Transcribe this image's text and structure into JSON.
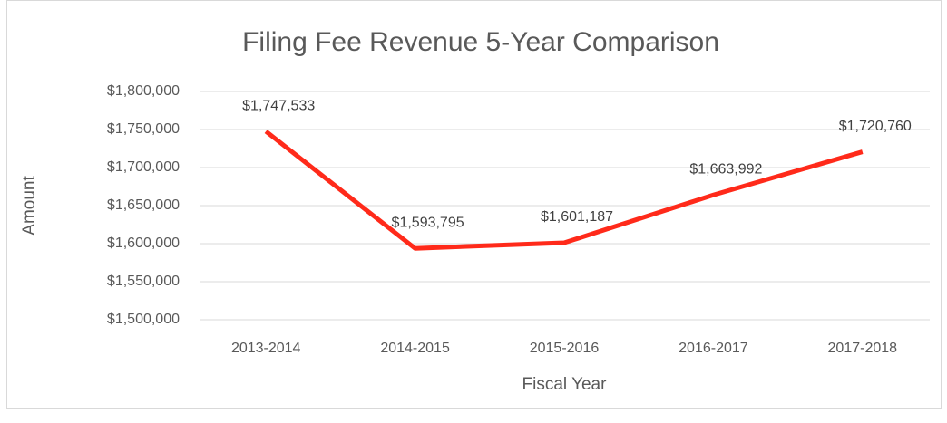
{
  "chart_data": {
    "type": "line",
    "title": "Filing Fee Revenue 5-Year Comparison",
    "x_label": "Fiscal Year",
    "y_label": "Amount",
    "categories": [
      "2013-2014",
      "2014-2015",
      "2015-2016",
      "2016-2017",
      "2017-2018"
    ],
    "series": [
      {
        "name": "Amount",
        "color": "#ff2a1a",
        "values": [
          1747533,
          1593795,
          1601187,
          1663992,
          1720760
        ],
        "value_labels": [
          "$1,747,533",
          "$1,593,795",
          "$1,601,187",
          "$1,663,992",
          "$1,720,760"
        ]
      }
    ],
    "ylim": [
      1500000,
      1800000
    ],
    "yticks": [
      {
        "value": 1500000,
        "label": "$1,500,000"
      },
      {
        "value": 1550000,
        "label": "$1,550,000"
      },
      {
        "value": 1600000,
        "label": "$1,600,000"
      },
      {
        "value": 1650000,
        "label": "$1,650,000"
      },
      {
        "value": 1700000,
        "label": "$1,700,000"
      },
      {
        "value": 1750000,
        "label": "$1,750,000"
      },
      {
        "value": 1800000,
        "label": "$1,800,000"
      }
    ],
    "grid": true
  }
}
